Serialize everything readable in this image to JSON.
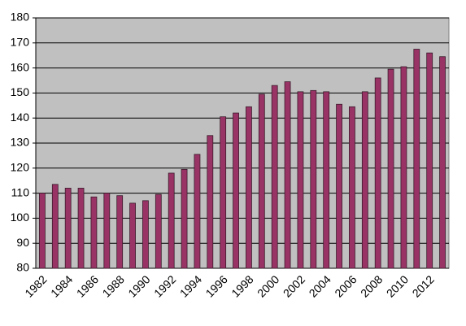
{
  "chart_data": {
    "type": "bar",
    "categories": [
      "1982",
      null,
      "1984",
      null,
      "1986",
      null,
      "1988",
      null,
      "1990",
      null,
      "1992",
      null,
      "1994",
      null,
      "1996",
      null,
      "1998",
      null,
      "2000",
      null,
      "2002",
      null,
      "2004",
      null,
      "2006",
      null,
      "2008",
      null,
      "2010",
      null,
      "2012",
      null
    ],
    "values": [
      110,
      113.5,
      112,
      112,
      108.5,
      110,
      109,
      106,
      107,
      109.5,
      118,
      119.5,
      125.5,
      133,
      140.5,
      142,
      144.5,
      149.5,
      153,
      154.5,
      150.5,
      151,
      150.5,
      145.5,
      144.5,
      150.5,
      156,
      159.5,
      160.5,
      167.5,
      166,
      164.5
    ],
    "color": "#993366",
    "ylim": [
      80,
      180
    ],
    "yticks": [
      80,
      90,
      100,
      110,
      120,
      130,
      140,
      150,
      160,
      170,
      180
    ],
    "grid": true
  }
}
